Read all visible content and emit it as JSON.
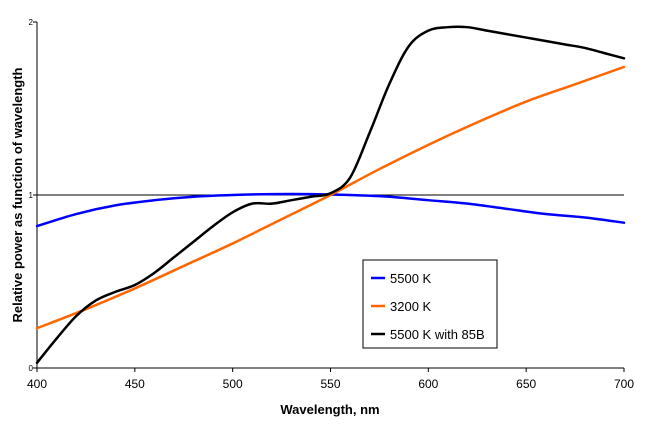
{
  "chart_data": {
    "type": "line",
    "title": "",
    "xlabel": "Wavelength, nm",
    "ylabel": "Relative power as function of wavelength",
    "xlim": [
      400,
      700
    ],
    "ylim": [
      0,
      2
    ],
    "x_ticks": [
      400,
      450,
      500,
      550,
      600,
      650,
      700
    ],
    "y_ticks": [
      0,
      1,
      2
    ],
    "grid": false,
    "reference_line": {
      "y": 1
    },
    "legend_placement": "bottom-right",
    "series": [
      {
        "name": "5500 K",
        "color": "#0000ff",
        "x": [
          400,
          420,
          440,
          460,
          480,
          500,
          520,
          540,
          560,
          580,
          600,
          620,
          640,
          660,
          680,
          700
        ],
        "y": [
          0.82,
          0.89,
          0.94,
          0.97,
          0.99,
          1.0,
          1.005,
          1.005,
          1.0,
          0.99,
          0.97,
          0.95,
          0.92,
          0.89,
          0.87,
          0.84
        ]
      },
      {
        "name": "3200 K",
        "color": "#ff6600",
        "x": [
          400,
          425,
          450,
          475,
          500,
          525,
          550,
          575,
          600,
          625,
          650,
          675,
          700
        ],
        "y": [
          0.23,
          0.34,
          0.46,
          0.59,
          0.72,
          0.86,
          1.0,
          1.15,
          1.29,
          1.42,
          1.54,
          1.64,
          1.74
        ]
      },
      {
        "name": "5500 K with 85B",
        "color": "#000000",
        "x": [
          400,
          410,
          420,
          430,
          440,
          450,
          460,
          470,
          480,
          490,
          500,
          510,
          520,
          530,
          540,
          550,
          560,
          570,
          580,
          590,
          600,
          610,
          620,
          630,
          640,
          650,
          660,
          670,
          680,
          690,
          700
        ],
        "y": [
          0.03,
          0.17,
          0.3,
          0.39,
          0.44,
          0.48,
          0.55,
          0.64,
          0.73,
          0.82,
          0.9,
          0.95,
          0.95,
          0.97,
          0.99,
          1.01,
          1.1,
          1.36,
          1.64,
          1.86,
          1.95,
          1.97,
          1.97,
          1.95,
          1.93,
          1.91,
          1.89,
          1.87,
          1.85,
          1.82,
          1.79
        ]
      }
    ]
  }
}
